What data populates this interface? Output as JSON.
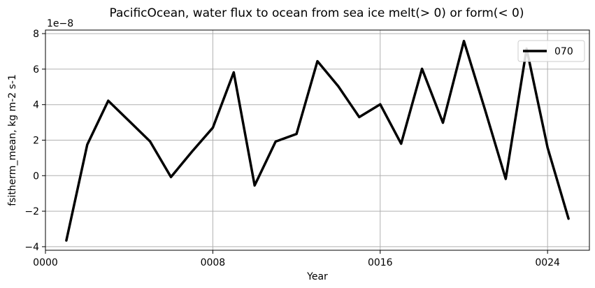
{
  "chart_data": {
    "type": "line",
    "title": "PacificOcean, water flux to ocean from sea ice melt(> 0) or form(< 0)",
    "xlabel": "Year",
    "ylabel": "fsitherm_mean, kg m-2 s-1",
    "y_scale_label": "1e−8",
    "xlim": [
      0,
      26
    ],
    "ylim": [
      -4.2,
      8.2
    ],
    "x_ticks": [
      0,
      8,
      16,
      24
    ],
    "x_tick_labels": [
      "0000",
      "0008",
      "0016",
      "0024"
    ],
    "y_ticks": [
      -4,
      -2,
      0,
      2,
      4,
      6,
      8
    ],
    "y_tick_labels": [
      "−4",
      "−2",
      "0",
      "2",
      "4",
      "6",
      "8"
    ],
    "grid": true,
    "legend_position": "top-right",
    "series": [
      {
        "name": "070",
        "color": "#000000",
        "x": [
          1,
          2,
          3,
          4,
          5,
          6,
          7,
          8,
          9,
          10,
          11,
          12,
          13,
          14,
          15,
          16,
          17,
          18,
          19,
          20,
          21,
          22,
          23,
          24,
          25
        ],
        "values": [
          -3.65,
          1.75,
          4.22,
          3.08,
          1.93,
          -0.08,
          1.35,
          2.7,
          5.82,
          -0.55,
          1.92,
          2.35,
          6.45,
          5.03,
          3.3,
          4.02,
          1.8,
          6.02,
          2.98,
          7.58,
          3.75,
          -0.18,
          7.15,
          1.58,
          -2.42
        ]
      }
    ]
  }
}
